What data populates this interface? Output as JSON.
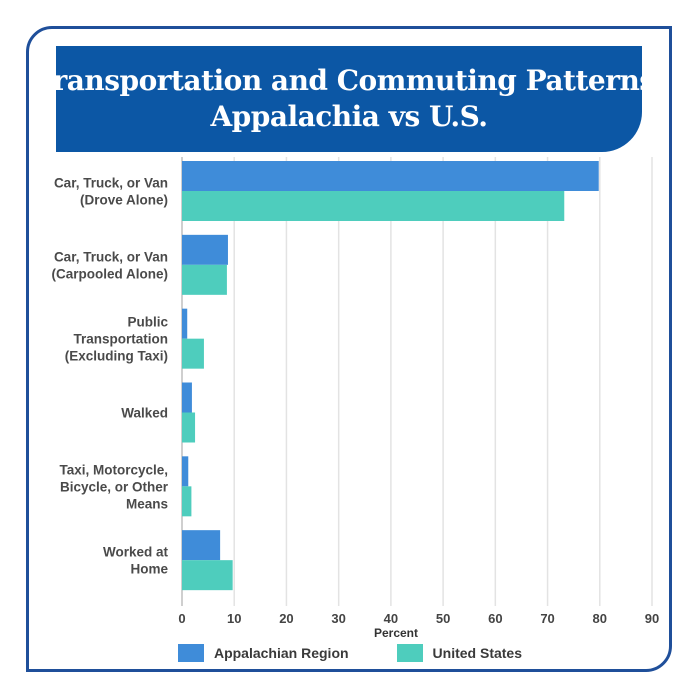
{
  "title_lines": [
    "Transportation and Commuting Patterns,",
    "Appalachia vs U.S."
  ],
  "colors": {
    "frame": "#1f4f9a",
    "title_bg": "#0c57a5",
    "appalachia": "#3f8cd9",
    "us": "#4ecdbd",
    "grid": "#e3e3e3"
  },
  "chart_data": {
    "type": "bar",
    "orientation": "horizontal",
    "title": "Transportation and Commuting Patterns, Appalachia vs U.S.",
    "xlabel": "Percent",
    "ylabel": "",
    "xlim": [
      0,
      90
    ],
    "xticks": [
      0,
      10,
      20,
      30,
      40,
      50,
      60,
      70,
      80,
      90
    ],
    "grid": true,
    "legend_position": "bottom",
    "categories": [
      [
        "Car, Truck, or Van",
        "(Drove Alone)"
      ],
      [
        "Car, Truck, or Van",
        "(Carpooled Alone)"
      ],
      [
        "Public",
        "Transportation",
        "(Excluding Taxi)"
      ],
      [
        "Walked"
      ],
      [
        "Taxi, Motorcycle,",
        "Bicycle, or Other",
        "Means"
      ],
      [
        "Worked at",
        "Home"
      ]
    ],
    "series": [
      {
        "name": "Appalachian Region",
        "color": "#3f8cd9",
        "values": [
          79.8,
          8.8,
          1.0,
          1.9,
          1.2,
          7.3
        ]
      },
      {
        "name": "United States",
        "color": "#4ecdbd",
        "values": [
          73.2,
          8.6,
          4.2,
          2.5,
          1.8,
          9.7
        ]
      }
    ]
  }
}
